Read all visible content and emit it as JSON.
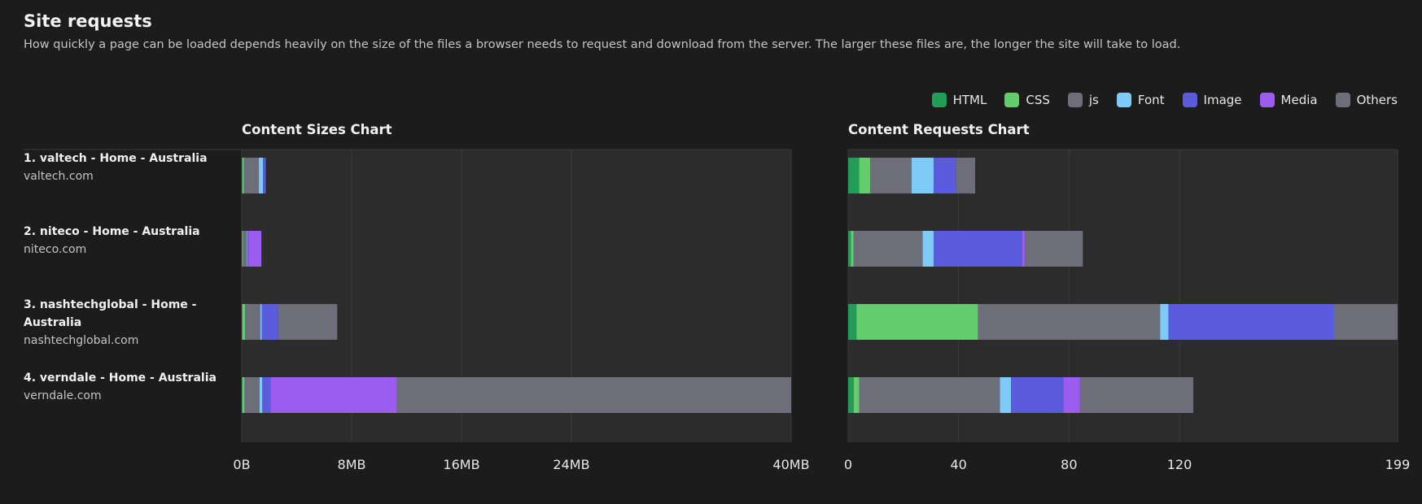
{
  "header": {
    "title": "Site requests",
    "description": "How quickly a page can be loaded depends heavily on the size of the files a browser needs to request and download from the server. The larger these files are, the longer the site will take to load."
  },
  "legend": [
    {
      "label": "HTML",
      "color": "#1e9e57"
    },
    {
      "label": "CSS",
      "color": "#63cd6d"
    },
    {
      "label": "js",
      "color": "#6e6e7a"
    },
    {
      "label": "Font",
      "color": "#7ecbf8"
    },
    {
      "label": "Image",
      "color": "#5b5cdd"
    },
    {
      "label": "Media",
      "color": "#9d5cf0"
    },
    {
      "label": "Others",
      "color": "#6e6e7a"
    }
  ],
  "sites": [
    {
      "name": "1. valtech - Home - Australia",
      "domain": "valtech.com"
    },
    {
      "name": "2. niteco - Home - Australia",
      "domain": "niteco.com"
    },
    {
      "name": "3. nashtechglobal - Home - Australia",
      "domain": "nashtechglobal.com"
    },
    {
      "name": "4. verndale - Home - Australia",
      "domain": "verndale.com"
    }
  ],
  "chart_data": [
    {
      "type": "bar",
      "orientation": "horizontal",
      "stacked": true,
      "title": "Content Sizes Chart",
      "unit": "MB",
      "xlim": [
        0,
        40
      ],
      "ticks": [
        0,
        8,
        16,
        24,
        40
      ],
      "tick_labels": [
        "0B",
        "8MB",
        "16MB",
        "24MB",
        "40MB"
      ],
      "categories": [
        "valtech",
        "niteco",
        "nashtechglobal",
        "verndale"
      ],
      "series": [
        {
          "name": "HTML",
          "values": [
            0.05,
            0.03,
            0.05,
            0.05
          ]
        },
        {
          "name": "CSS",
          "values": [
            0.1,
            0.05,
            0.2,
            0.15
          ]
        },
        {
          "name": "js",
          "values": [
            1.1,
            0.3,
            1.1,
            1.1
          ]
        },
        {
          "name": "Font",
          "values": [
            0.3,
            0.05,
            0.1,
            0.2
          ]
        },
        {
          "name": "Image",
          "values": [
            0.2,
            0.05,
            1.2,
            0.6
          ]
        },
        {
          "name": "Media",
          "values": [
            0,
            0.95,
            0,
            9.2
          ]
        },
        {
          "name": "Others",
          "values": [
            0,
            0,
            4.3,
            28.7
          ]
        }
      ]
    },
    {
      "type": "bar",
      "orientation": "horizontal",
      "stacked": true,
      "title": "Content Requests Chart",
      "unit": "requests",
      "xlim": [
        0,
        199
      ],
      "ticks": [
        0,
        40,
        80,
        120,
        199
      ],
      "tick_labels": [
        "0",
        "40",
        "80",
        "120",
        "199"
      ],
      "categories": [
        "valtech",
        "niteco",
        "nashtechglobal",
        "verndale"
      ],
      "series": [
        {
          "name": "HTML",
          "values": [
            4,
            1,
            3,
            2
          ]
        },
        {
          "name": "CSS",
          "values": [
            4,
            1,
            44,
            2
          ]
        },
        {
          "name": "js",
          "values": [
            15,
            25,
            66,
            51
          ]
        },
        {
          "name": "Font",
          "values": [
            8,
            4,
            3,
            4
          ]
        },
        {
          "name": "Image",
          "values": [
            8,
            32,
            60,
            19
          ]
        },
        {
          "name": "Media",
          "values": [
            0,
            1,
            0,
            6
          ]
        },
        {
          "name": "Others",
          "values": [
            7,
            21,
            23,
            41
          ]
        }
      ]
    }
  ]
}
